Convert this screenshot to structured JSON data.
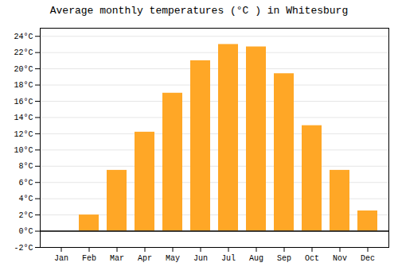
{
  "chart_data": {
    "type": "bar",
    "title": "Average monthly temperatures (°C ) in Whitesburg",
    "categories": [
      "Jan",
      "Feb",
      "Mar",
      "Apr",
      "May",
      "Jun",
      "Jul",
      "Aug",
      "Sep",
      "Oct",
      "Nov",
      "Dec"
    ],
    "values": [
      0,
      2,
      7.5,
      12.2,
      17.0,
      21.0,
      23.0,
      22.7,
      19.4,
      13.0,
      7.5,
      2.5
    ],
    "color": "#FFA726",
    "ylim": [
      -2,
      25
    ],
    "yticks": [
      {
        "value": -2,
        "label": "-2°C"
      },
      {
        "value": 0,
        "label": "0°C"
      },
      {
        "value": 2,
        "label": "2°C"
      },
      {
        "value": 4,
        "label": "4°C"
      },
      {
        "value": 6,
        "label": "6°C"
      },
      {
        "value": 8,
        "label": "8°C"
      },
      {
        "value": 10,
        "label": "10°C"
      },
      {
        "value": 12,
        "label": "12°C"
      },
      {
        "value": 14,
        "label": "14°C"
      },
      {
        "value": 16,
        "label": "16°C"
      },
      {
        "value": 18,
        "label": "18°C"
      },
      {
        "value": 20,
        "label": "20°C"
      },
      {
        "value": 22,
        "label": "22°C"
      },
      {
        "value": 24,
        "label": "24°C"
      }
    ],
    "grid": true
  }
}
